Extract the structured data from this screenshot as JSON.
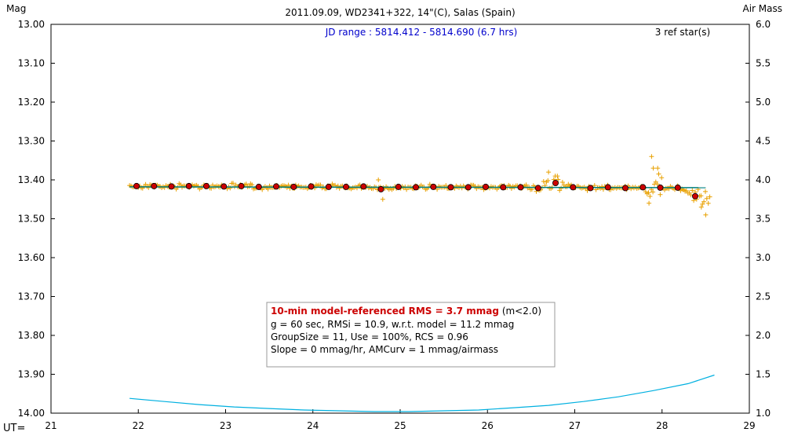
{
  "chart_data": {
    "type": "scatter",
    "title": "2011.09.09, WD2341+322, 14\"(C), Salas (Spain)",
    "subtitle": "JD range : 5814.412 - 5814.690 (6.7 hrs)",
    "ref_stars": "3 ref star(s)",
    "ylabel": "Mag",
    "y2label": "Air Mass",
    "xlabel": "UT=",
    "xlim": [
      21,
      29
    ],
    "ylim": [
      14.0,
      13.0
    ],
    "y2lim": [
      1.0,
      6.0
    ],
    "x_ticks": [
      "21",
      "22",
      "23",
      "24",
      "25",
      "26",
      "27",
      "28",
      "29"
    ],
    "y_ticks": [
      "13.00",
      "13.10",
      "13.20",
      "13.30",
      "13.40",
      "13.50",
      "13.60",
      "13.70",
      "13.80",
      "13.90",
      "14.00"
    ],
    "y2_ticks": [
      "6.0",
      "5.5",
      "5.0",
      "4.5",
      "4.0",
      "3.5",
      "3.0",
      "2.5",
      "2.0",
      "1.5",
      "1.0"
    ],
    "grid": false,
    "colors": {
      "raw_points": "#e8a000",
      "group_avg": "#cc0000",
      "model_line": "#008080",
      "airmass": "#00b0e0",
      "rms_text": "#cc0000",
      "jd_text": "#0000cc"
    },
    "series": [
      {
        "kind": "group-averages",
        "x": [
          21.98,
          22.18,
          22.38,
          22.58,
          22.78,
          22.98,
          23.18,
          23.38,
          23.58,
          23.78,
          23.98,
          24.18,
          24.38,
          24.58,
          24.78,
          24.98,
          25.18,
          25.38,
          25.58,
          25.78,
          25.98,
          26.18,
          26.38,
          26.58,
          26.78,
          26.98,
          27.18,
          27.38,
          27.58,
          27.78,
          27.98,
          28.18,
          28.38
        ],
        "y": [
          13.416,
          13.416,
          13.417,
          13.416,
          13.416,
          13.417,
          13.416,
          13.418,
          13.417,
          13.418,
          13.417,
          13.418,
          13.418,
          13.417,
          13.424,
          13.418,
          13.419,
          13.418,
          13.419,
          13.419,
          13.418,
          13.419,
          13.419,
          13.421,
          13.408,
          13.419,
          13.421,
          13.419,
          13.421,
          13.419,
          13.42,
          13.42,
          13.442
        ]
      },
      {
        "kind": "model",
        "x": [
          21.9,
          28.5
        ],
        "y": [
          13.418,
          13.42
        ]
      },
      {
        "kind": "airmass",
        "x": [
          21.9,
          22.3,
          22.7,
          23.1,
          23.5,
          23.9,
          24.3,
          24.7,
          25.1,
          25.5,
          25.9,
          26.3,
          26.7,
          27.1,
          27.5,
          27.9,
          28.3,
          28.6
        ],
        "y": [
          1.19,
          1.15,
          1.11,
          1.08,
          1.06,
          1.04,
          1.03,
          1.02,
          1.02,
          1.03,
          1.04,
          1.07,
          1.1,
          1.15,
          1.21,
          1.29,
          1.38,
          1.49
        ]
      }
    ]
  },
  "stats": {
    "line1": "10-min model-referenced RMS = 3.7 mmag",
    "line1_suffix": " (m<2.0)",
    "line2": "g = 60 sec, RMSi = 10.9, w.r.t. model = 11.2 mmag",
    "line3": "GroupSize = 11, Use = 100%, RCS = 0.96",
    "line4": "Slope = 0 mmag/hr, AMCurv = 1 mmag/airmass"
  }
}
